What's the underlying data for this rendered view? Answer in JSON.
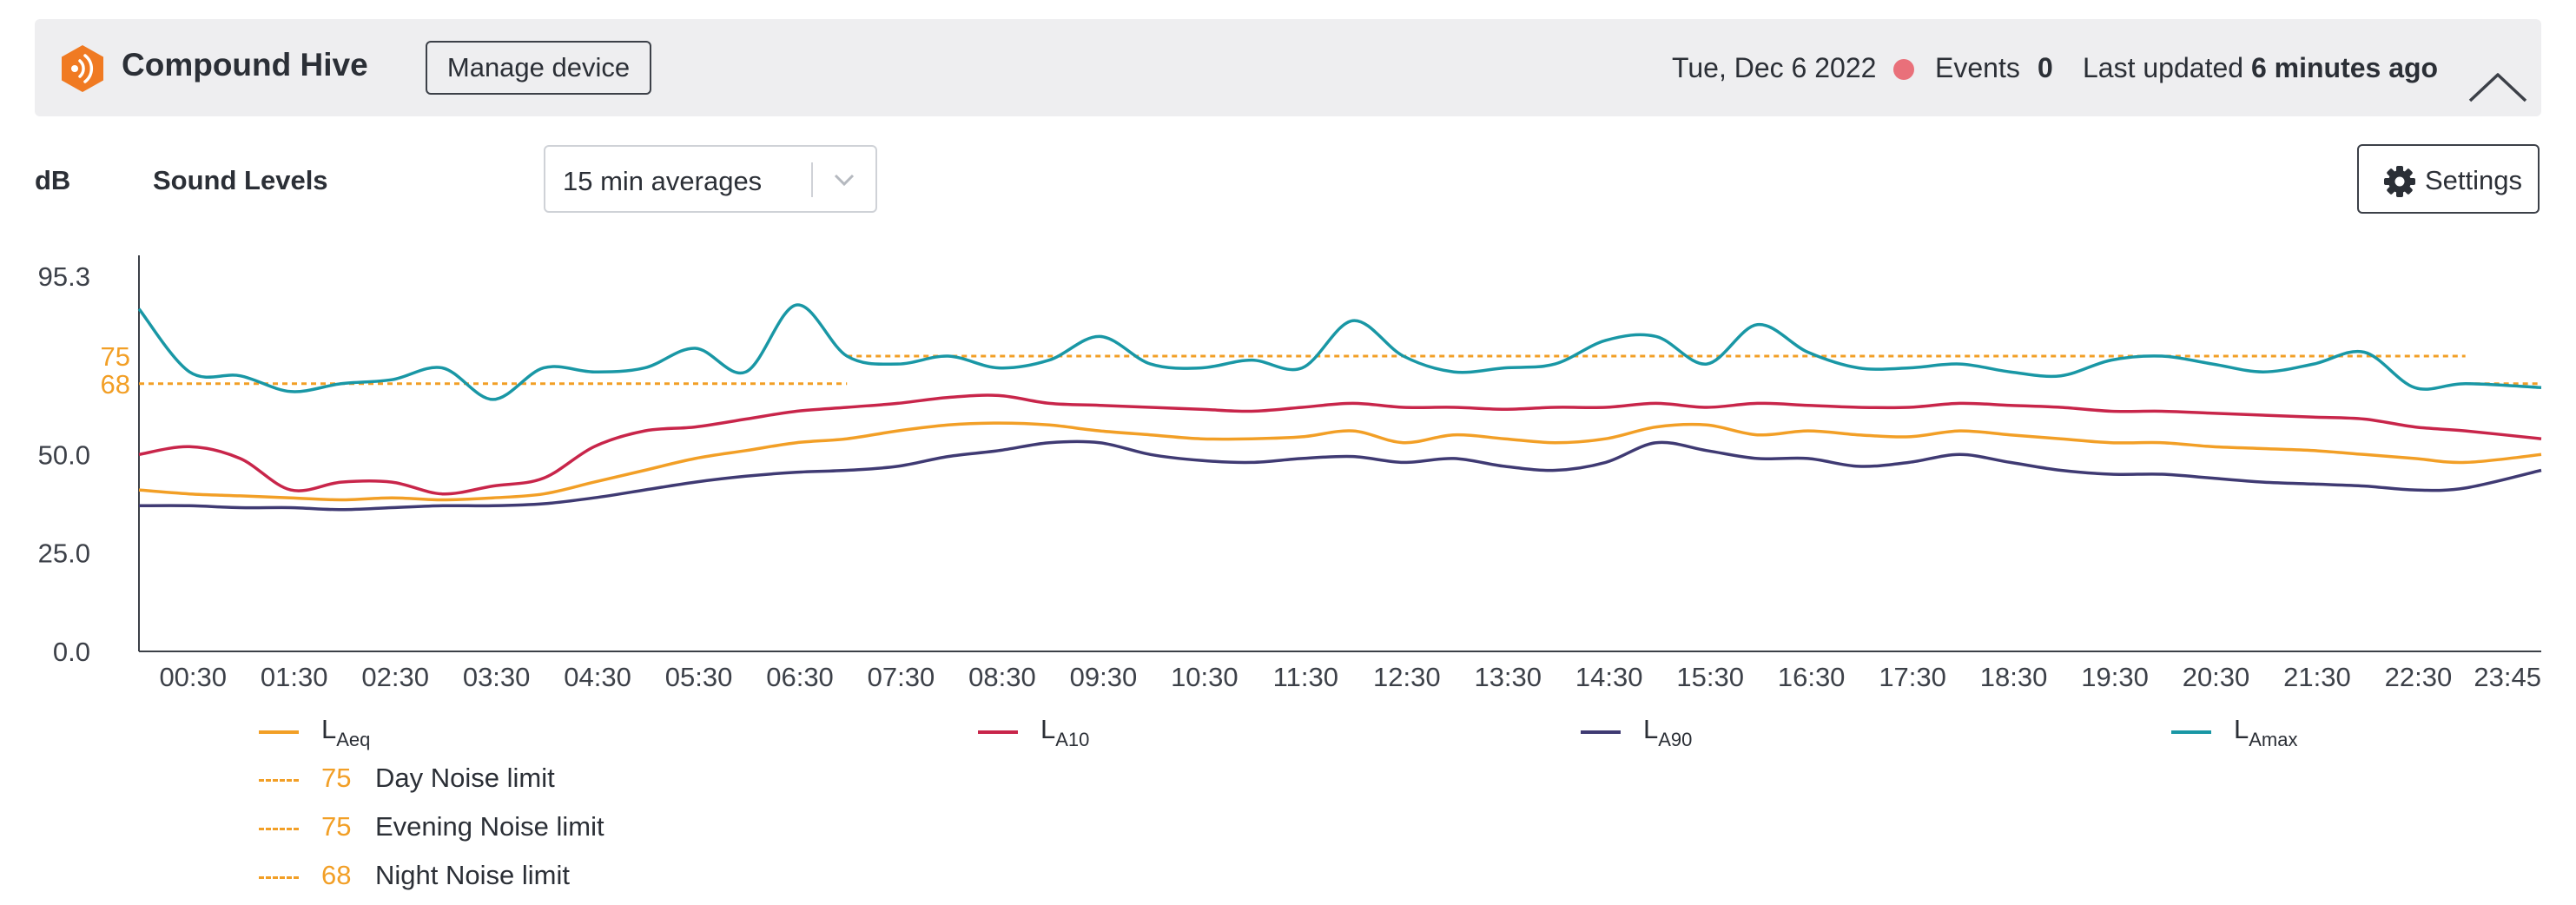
{
  "header": {
    "device_name": "Compound Hive",
    "manage_button": "Manage device",
    "date": "Tue, Dec 6 2022",
    "events_label": "Events",
    "events_count": "0",
    "last_updated_label": "Last updated",
    "last_updated_value": "6 minutes ago",
    "logo_icon": "broadcast-icon",
    "logo_color": "#f07a22"
  },
  "toolbar": {
    "unit": "dB",
    "title": "Sound Levels",
    "averaging_selected": "15 min averages",
    "settings_label": "Settings"
  },
  "chart_data": {
    "type": "line",
    "title": "Sound Levels",
    "ylabel": "dB",
    "xlabel": "",
    "ylim": [
      0,
      95.3
    ],
    "y_ticks": [
      "95.3",
      "50.0",
      "25.0",
      "0.0"
    ],
    "y_tick_values": [
      95.3,
      50.0,
      25.0,
      0.0
    ],
    "limit_ticks": [
      "75",
      "68"
    ],
    "limit_tick_values": [
      75,
      68
    ],
    "x_ticks": [
      "00:30",
      "01:30",
      "02:30",
      "03:30",
      "04:30",
      "05:30",
      "06:30",
      "07:30",
      "08:30",
      "09:30",
      "10:30",
      "11:30",
      "12:30",
      "13:30",
      "14:30",
      "15:30",
      "16:30",
      "17:30",
      "18:30",
      "19:30",
      "20:30",
      "21:30",
      "22:30",
      "23:45"
    ],
    "x_tick_hours": [
      0.5,
      1.5,
      2.5,
      3.5,
      4.5,
      5.5,
      6.5,
      7.5,
      8.5,
      9.5,
      10.5,
      11.5,
      12.5,
      13.5,
      14.5,
      15.5,
      16.5,
      17.5,
      18.5,
      19.5,
      20.5,
      21.5,
      22.5,
      23.75
    ],
    "x_range_hours": [
      0,
      23.75
    ],
    "grid": false,
    "legend_position": "bottom",
    "x_hours": [
      0,
      0.5,
      1,
      1.5,
      2,
      2.5,
      3,
      3.5,
      4,
      4.5,
      5,
      5.5,
      6,
      6.5,
      7,
      7.5,
      8,
      8.5,
      9,
      9.5,
      10,
      10.5,
      11,
      11.5,
      12,
      12.5,
      13,
      13.5,
      14,
      14.5,
      15,
      15.5,
      16,
      16.5,
      17,
      17.5,
      18,
      18.5,
      19,
      19.5,
      20,
      20.5,
      21,
      21.5,
      22,
      22.5,
      23,
      23.75
    ],
    "series": [
      {
        "name": "L",
        "subscript": "Aeq",
        "color": "#f29f26",
        "values": [
          41,
          40,
          39.5,
          39,
          38.5,
          39,
          38.5,
          39,
          40,
          43,
          46,
          49,
          51,
          53,
          54,
          56,
          57.5,
          58,
          57.5,
          56,
          55,
          54,
          54,
          54.5,
          56,
          53,
          55,
          54,
          53,
          54,
          57,
          57.5,
          55,
          56,
          55,
          54.5,
          56,
          55,
          54,
          53,
          53,
          52,
          51.5,
          51,
          50,
          49,
          48,
          50
        ]
      },
      {
        "name": "L",
        "subscript": "A10",
        "color": "#c8254a",
        "values": [
          50,
          52,
          49,
          41,
          43,
          43,
          40,
          42,
          44,
          52,
          56,
          57,
          59,
          61,
          62,
          63,
          64.5,
          65,
          63,
          62.5,
          62,
          61.5,
          61,
          62,
          63,
          62,
          62,
          61.5,
          62,
          62,
          63,
          62,
          63,
          62.5,
          62,
          62,
          63,
          62.5,
          62,
          61,
          61,
          60.5,
          60,
          59.5,
          59,
          57,
          56,
          54
        ]
      },
      {
        "name": "L",
        "subscript": "A90",
        "color": "#3f3a73",
        "values": [
          37,
          37,
          36.5,
          36.5,
          36,
          36.5,
          37,
          37,
          37.5,
          39,
          41,
          43,
          44.5,
          45.5,
          46,
          47,
          49.5,
          51,
          53,
          53,
          50,
          48.5,
          48,
          49,
          49.5,
          48,
          49,
          47,
          46,
          48,
          53,
          51,
          49,
          49,
          47,
          48,
          50,
          48,
          46,
          45,
          45,
          44,
          43,
          42.5,
          42,
          41,
          41.5,
          46
        ]
      },
      {
        "name": "L",
        "subscript": "Amax",
        "color": "#1997a5",
        "values": [
          87,
          71,
          70,
          66,
          68,
          69,
          72,
          64,
          72,
          71,
          72,
          77,
          71,
          88,
          75,
          73,
          75,
          72,
          74,
          80,
          73,
          72,
          74,
          72,
          84,
          75,
          71,
          72,
          73,
          79,
          80,
          73,
          83,
          76,
          72,
          72,
          73,
          71,
          70,
          74,
          75,
          73,
          71,
          73,
          76,
          67,
          68,
          67
        ]
      }
    ],
    "limits": [
      {
        "value": 75,
        "label": "Day Noise limit",
        "color": "#f29f26",
        "ranges": [
          [
            7,
            19
          ]
        ]
      },
      {
        "value": 75,
        "label": "Evening Noise limit",
        "color": "#f29f26",
        "ranges": [
          [
            19,
            23
          ]
        ]
      },
      {
        "value": 68,
        "label": "Night Noise limit",
        "color": "#f29f26",
        "ranges": [
          [
            0,
            7
          ],
          [
            23,
            24
          ]
        ]
      }
    ]
  }
}
